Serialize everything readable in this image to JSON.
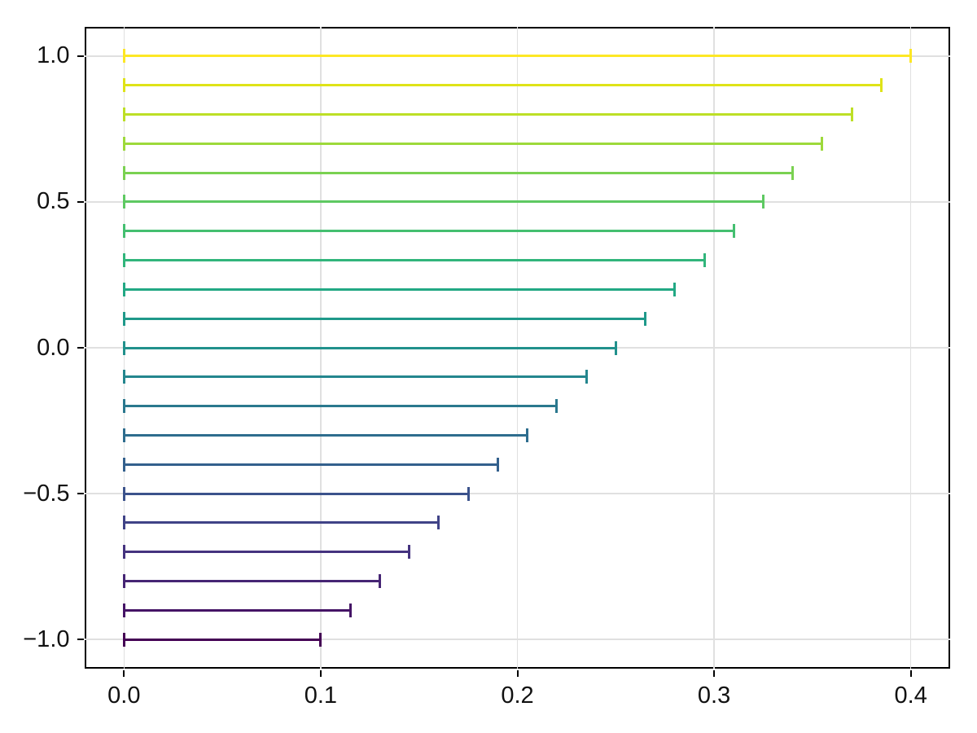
{
  "chart_data": {
    "type": "bar",
    "subtype": "horizontal-capped-lines",
    "title": "",
    "xlabel": "",
    "ylabel": "",
    "colormap": "viridis",
    "grid": true,
    "legend": "none",
    "xlim": [
      -0.02,
      0.42
    ],
    "ylim": [
      -1.1,
      1.1
    ],
    "xticks": {
      "values": [
        0.0,
        0.1,
        0.2,
        0.3,
        0.4
      ],
      "labels": [
        "0.0",
        "0.1",
        "0.2",
        "0.3",
        "0.4"
      ]
    },
    "yticks": {
      "values": [
        1.0,
        0.5,
        0.0,
        -0.5,
        -1.0
      ],
      "labels": [
        "1.0",
        "0.5",
        "0.0",
        "−0.5",
        "−1.0"
      ]
    },
    "points": [
      {
        "y": 1.0,
        "x_start": 0.0,
        "x_end": 0.4,
        "color": "#fde725"
      },
      {
        "y": 0.9,
        "x_start": 0.0,
        "x_end": 0.385,
        "color": "#dfe318"
      },
      {
        "y": 0.8,
        "x_start": 0.0,
        "x_end": 0.37,
        "color": "#bddf26"
      },
      {
        "y": 0.7,
        "x_start": 0.0,
        "x_end": 0.355,
        "color": "#9dd93b"
      },
      {
        "y": 0.6,
        "x_start": 0.0,
        "x_end": 0.34,
        "color": "#7ad151"
      },
      {
        "y": 0.5,
        "x_start": 0.0,
        "x_end": 0.325,
        "color": "#5ec962"
      },
      {
        "y": 0.4,
        "x_start": 0.0,
        "x_end": 0.31,
        "color": "#44bf70"
      },
      {
        "y": 0.3,
        "x_start": 0.0,
        "x_end": 0.295,
        "color": "#31b57b"
      },
      {
        "y": 0.2,
        "x_start": 0.0,
        "x_end": 0.28,
        "color": "#22a884"
      },
      {
        "y": 0.1,
        "x_start": 0.0,
        "x_end": 0.265,
        "color": "#1f998a"
      },
      {
        "y": 0.0,
        "x_start": 0.0,
        "x_end": 0.25,
        "color": "#21918c"
      },
      {
        "y": -0.1,
        "x_start": 0.0,
        "x_end": 0.235,
        "color": "#24868e"
      },
      {
        "y": -0.2,
        "x_start": 0.0,
        "x_end": 0.22,
        "color": "#2a788e"
      },
      {
        "y": -0.3,
        "x_start": 0.0,
        "x_end": 0.205,
        "color": "#2e6d8e"
      },
      {
        "y": -0.4,
        "x_start": 0.0,
        "x_end": 0.19,
        "color": "#33608d"
      },
      {
        "y": -0.5,
        "x_start": 0.0,
        "x_end": 0.175,
        "color": "#3b528b"
      },
      {
        "y": -0.6,
        "x_start": 0.0,
        "x_end": 0.16,
        "color": "#404387"
      },
      {
        "y": -0.7,
        "x_start": 0.0,
        "x_end": 0.145,
        "color": "#45337f"
      },
      {
        "y": -0.8,
        "x_start": 0.0,
        "x_end": 0.13,
        "color": "#462574"
      },
      {
        "y": -0.9,
        "x_start": 0.0,
        "x_end": 0.115,
        "color": "#451466"
      },
      {
        "y": -1.0,
        "x_start": 0.0,
        "x_end": 0.1,
        "color": "#440154"
      }
    ]
  },
  "style_colors": {
    "background": "#ffffff",
    "grid": "#e0e0e0",
    "frame": "#000000",
    "tick": "#000000",
    "tick_label": "#111111"
  }
}
